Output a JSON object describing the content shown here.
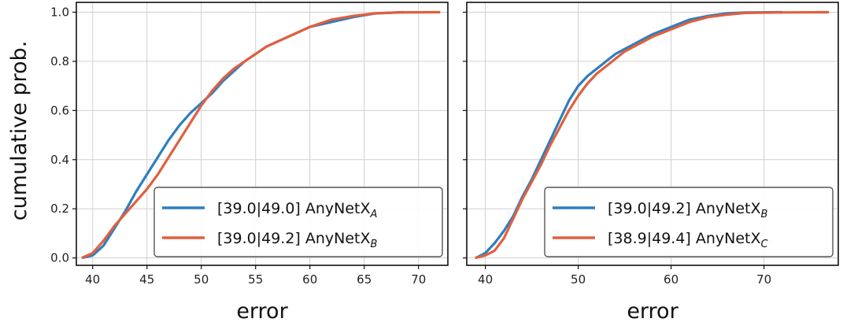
{
  "figure": {
    "ylabel": "cumulative prob."
  },
  "chart_data": [
    {
      "type": "line",
      "xlabel": "error",
      "ylabel": "cumulative prob.",
      "xlim": [
        38.5,
        72.7
      ],
      "ylim": [
        -0.03,
        1.04
      ],
      "xticks": [
        40,
        45,
        50,
        55,
        60,
        65,
        70
      ],
      "yticks": [
        0.0,
        0.2,
        0.4,
        0.6,
        0.8,
        1.0
      ],
      "grid": true,
      "legend_position": "bottom-right",
      "series": [
        {
          "name": "[39.0|49.0] AnyNetX",
          "name_subscript": "A",
          "color": "#2e7ebf",
          "x": [
            39.0,
            40.0,
            41.0,
            42.0,
            43.0,
            44.0,
            45.0,
            46.0,
            47.0,
            48.0,
            49.0,
            50.0,
            51.0,
            52.0,
            53.0,
            54.0,
            55.0,
            56.0,
            57.0,
            58.0,
            59.0,
            60.0,
            62.0,
            64.0,
            66.0,
            68.6
          ],
          "y": [
            0.0,
            0.01,
            0.05,
            0.12,
            0.19,
            0.27,
            0.34,
            0.41,
            0.48,
            0.54,
            0.59,
            0.63,
            0.67,
            0.72,
            0.76,
            0.8,
            0.83,
            0.86,
            0.88,
            0.9,
            0.92,
            0.94,
            0.96,
            0.98,
            0.995,
            1.0
          ]
        },
        {
          "name": "[39.0|49.2] AnyNetX",
          "name_subscript": "B",
          "color": "#e0603f",
          "x": [
            39.0,
            40.0,
            41.0,
            42.0,
            43.0,
            44.0,
            45.0,
            46.0,
            47.0,
            48.0,
            49.0,
            50.0,
            51.0,
            52.0,
            53.0,
            54.0,
            55.0,
            56.0,
            57.0,
            58.0,
            59.0,
            60.0,
            62.0,
            64.0,
            66.0,
            68.0,
            72.0
          ],
          "y": [
            0.0,
            0.02,
            0.07,
            0.13,
            0.18,
            0.23,
            0.28,
            0.34,
            0.41,
            0.48,
            0.55,
            0.62,
            0.68,
            0.73,
            0.77,
            0.8,
            0.83,
            0.86,
            0.88,
            0.9,
            0.92,
            0.94,
            0.97,
            0.985,
            0.995,
            0.999,
            1.0
          ]
        }
      ]
    },
    {
      "type": "line",
      "xlabel": "error",
      "ylabel": "",
      "xlim": [
        38.0,
        78.0
      ],
      "ylim": [
        -0.03,
        1.04
      ],
      "xticks": [
        40,
        50,
        60,
        70
      ],
      "yticks": [
        0.0,
        0.2,
        0.4,
        0.6,
        0.8,
        1.0
      ],
      "grid": true,
      "legend_position": "bottom-right",
      "series": [
        {
          "name": "[39.0|49.2] AnyNetX",
          "name_subscript": "B",
          "color": "#2e7ebf",
          "x": [
            39.0,
            40.0,
            41.0,
            42.0,
            43.0,
            44.0,
            45.0,
            46.0,
            47.0,
            48.0,
            49.0,
            50.0,
            51.0,
            52.0,
            53.0,
            54.0,
            55.0,
            56.0,
            58.0,
            60.0,
            62.0,
            64.0,
            66.0,
            68.0,
            72.0
          ],
          "y": [
            0.0,
            0.02,
            0.06,
            0.11,
            0.17,
            0.25,
            0.32,
            0.4,
            0.48,
            0.56,
            0.64,
            0.7,
            0.74,
            0.77,
            0.8,
            0.83,
            0.85,
            0.87,
            0.91,
            0.94,
            0.97,
            0.985,
            0.995,
            0.999,
            1.0
          ]
        },
        {
          "name": "[38.9|49.4] AnyNetX",
          "name_subscript": "C",
          "color": "#e0603f",
          "x": [
            38.9,
            40.0,
            41.0,
            42.0,
            43.0,
            44.0,
            45.0,
            46.0,
            47.0,
            48.0,
            49.0,
            50.0,
            51.0,
            52.0,
            53.0,
            54.0,
            55.0,
            56.0,
            58.0,
            60.0,
            62.0,
            64.0,
            66.0,
            68.0,
            72.0,
            77.0
          ],
          "y": [
            0.0,
            0.01,
            0.03,
            0.08,
            0.16,
            0.24,
            0.31,
            0.38,
            0.46,
            0.53,
            0.6,
            0.66,
            0.71,
            0.75,
            0.78,
            0.81,
            0.84,
            0.86,
            0.9,
            0.93,
            0.96,
            0.98,
            0.99,
            0.997,
            0.999,
            1.0
          ]
        }
      ]
    }
  ]
}
